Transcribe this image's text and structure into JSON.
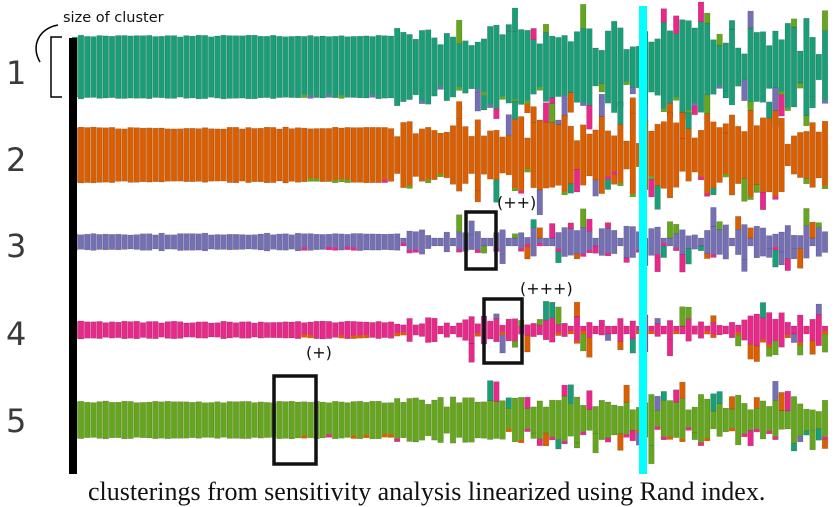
{
  "header_note": "size of cluster",
  "rows": [
    {
      "label": "1",
      "main_color": "#1b9e77"
    },
    {
      "label": "2",
      "main_color": "#d95f02"
    },
    {
      "label": "3",
      "main_color": "#7570b3"
    },
    {
      "label": "4",
      "main_color": "#e7298a"
    },
    {
      "label": "5",
      "main_color": "#66a61e"
    }
  ],
  "markers": [
    {
      "label": "(+)",
      "row": "5"
    },
    {
      "label": "(++)",
      "row": "3"
    },
    {
      "label": "(+++)",
      "row": "4"
    }
  ],
  "caption": "clusterings from sensitivity analysis linearized using Rand index.",
  "colors": {
    "teal": "#1b9e77",
    "orange": "#d95f02",
    "purple": "#7570b3",
    "pink": "#e7298a",
    "green": "#66a61e",
    "cyan_line": "#00ffff",
    "axis_line": "#000000",
    "box": "#111111"
  }
}
